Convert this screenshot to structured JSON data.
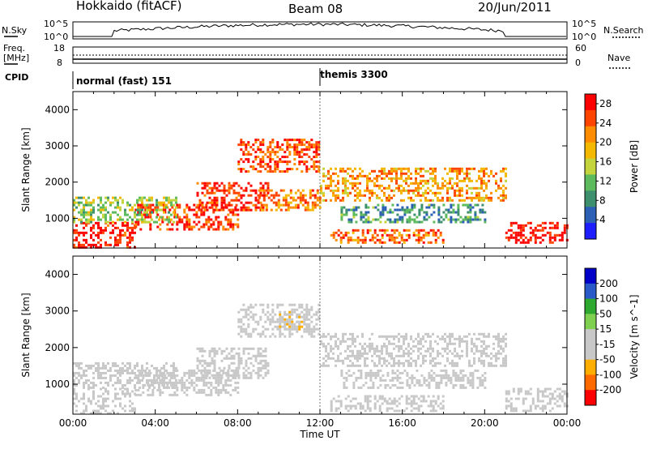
{
  "header": {
    "radar": "Hokkaido (fitACF)",
    "beam": "Beam 08",
    "date": "20/Jun/2011"
  },
  "noise_panel": {
    "left_label": "N.Sky",
    "right_label": "N.Search",
    "left_ticks": [
      "10^5",
      "10^0"
    ],
    "right_ticks": [
      "10^5",
      "10^0"
    ]
  },
  "freq_panel": {
    "left_label_1": "Freq.",
    "left_label_2": "[MHz]",
    "right_label": "Nave",
    "left_ticks": [
      "18",
      "8"
    ],
    "right_ticks": [
      "60",
      "0"
    ]
  },
  "cpid_panel": {
    "label": "CPID",
    "entries": [
      {
        "text": "normal (fast) 151",
        "start_hour": 0
      },
      {
        "text": "themis 3300",
        "start_hour": 12
      }
    ]
  },
  "x_axis": {
    "label": "Time UT",
    "ticks": [
      "00:00",
      "04:00",
      "08:00",
      "12:00",
      "16:00",
      "20:00",
      "00:00"
    ],
    "range_hours": [
      0,
      24
    ]
  },
  "colors": {
    "power": [
      "#1e1eff",
      "#2b60b4",
      "#3e8f6e",
      "#5dbb5e",
      "#c4d43c",
      "#f4b800",
      "#ff8c00",
      "#ff4400",
      "#ff0000"
    ],
    "velocity": [
      "#ff0000",
      "#ff6a00",
      "#ffae00",
      "#c8c8c8",
      "#c8c8c8",
      "#7fd050",
      "#2ea82e",
      "#2a5ac8",
      "#0000c8"
    ]
  },
  "chart_data": [
    {
      "type": "heatmap",
      "ylabel": "Slant Range [km]",
      "xlabel": "",
      "yticks": [
        "1000",
        "2000",
        "3000",
        "4000"
      ],
      "ylim": [
        180,
        4500
      ],
      "xlim": [
        0,
        24
      ],
      "colorbar_label": "Power [dB]",
      "colorbar_ticks": [
        "4",
        "8",
        "12",
        "16",
        "20",
        "24",
        "28"
      ],
      "colorbar_range": [
        0,
        30
      ],
      "echo_bands": [
        {
          "t0": 0,
          "t1": 3,
          "r0": 200,
          "r1": 900,
          "value": 28
        },
        {
          "t0": 3,
          "t1": 8,
          "r0": 700,
          "r1": 1400,
          "value": 26
        },
        {
          "t0": 6,
          "t1": 9.5,
          "r0": 1200,
          "r1": 2000,
          "value": 27
        },
        {
          "t0": 8,
          "t1": 12,
          "r0": 2300,
          "r1": 3200,
          "value": 25
        },
        {
          "t0": 9,
          "t1": 12,
          "r0": 1200,
          "r1": 1800,
          "value": 22
        },
        {
          "t0": 12,
          "t1": 21,
          "r0": 1500,
          "r1": 2400,
          "value": 21
        },
        {
          "t0": 12.5,
          "t1": 18,
          "r0": 300,
          "r1": 700,
          "value": 24
        },
        {
          "t0": 21,
          "t1": 24,
          "r0": 300,
          "r1": 900,
          "value": 29
        },
        {
          "t0": 0,
          "t1": 5,
          "r0": 900,
          "r1": 1600,
          "value": 14
        },
        {
          "t0": 13,
          "t1": 20,
          "r0": 900,
          "r1": 1400,
          "value": 9
        }
      ]
    },
    {
      "type": "heatmap",
      "ylabel": "Slant Range [km]",
      "xlabel": "Time UT",
      "yticks": [
        "1000",
        "2000",
        "3000",
        "4000"
      ],
      "ylim": [
        180,
        4500
      ],
      "xlim": [
        0,
        24
      ],
      "colorbar_label": "Velocity [m s^-1]",
      "colorbar_ticks": [
        "200",
        "100",
        "50",
        "15",
        "-15",
        "-50",
        "-100",
        "-200"
      ],
      "colorbar_range": [
        -250,
        250
      ],
      "echo_bands": [
        {
          "t0": 0,
          "t1": 3,
          "r0": 200,
          "r1": 900,
          "value": 0
        },
        {
          "t0": 3,
          "t1": 8,
          "r0": 700,
          "r1": 1400,
          "value": 0
        },
        {
          "t0": 6,
          "t1": 9.5,
          "r0": 1200,
          "r1": 2000,
          "value": 0
        },
        {
          "t0": 8,
          "t1": 12,
          "r0": 2300,
          "r1": 3200,
          "value": -5
        },
        {
          "t0": 10,
          "t1": 11.5,
          "r0": 2500,
          "r1": 3000,
          "value": -70
        },
        {
          "t0": 12,
          "t1": 21,
          "r0": 1500,
          "r1": 2400,
          "value": 0
        },
        {
          "t0": 12.5,
          "t1": 18,
          "r0": 300,
          "r1": 700,
          "value": -60
        },
        {
          "t0": 21,
          "t1": 24,
          "r0": 300,
          "r1": 900,
          "value": 0
        },
        {
          "t0": 0,
          "t1": 5,
          "r0": 900,
          "r1": 1600,
          "value": 0
        },
        {
          "t0": 13,
          "t1": 20,
          "r0": 900,
          "r1": 1400,
          "value": 0
        }
      ]
    }
  ]
}
